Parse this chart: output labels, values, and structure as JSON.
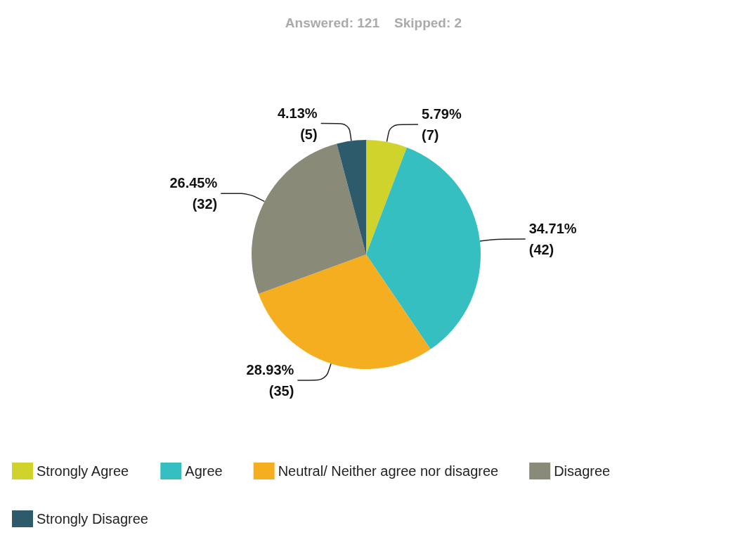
{
  "chart_data": {
    "type": "pie",
    "title": "Answered: 121    Skipped: 2",
    "categories": [
      "Strongly Agree",
      "Agree",
      "Neutral/ Neither agree nor disagree",
      "Disagree",
      "Strongly Disagree"
    ],
    "values": [
      7,
      42,
      35,
      32,
      5
    ],
    "colors": [
      "#d0d32b",
      "#35bfc0",
      "#f5ae1f",
      "#898a78",
      "#2e5b6b"
    ],
    "value_labels": [
      "5.79%\n(7)",
      "34.71%\n(42)",
      "28.93%\n(35)",
      "26.45%\n(32)",
      "4.13%\n(5)"
    ],
    "legend": "bottom"
  }
}
